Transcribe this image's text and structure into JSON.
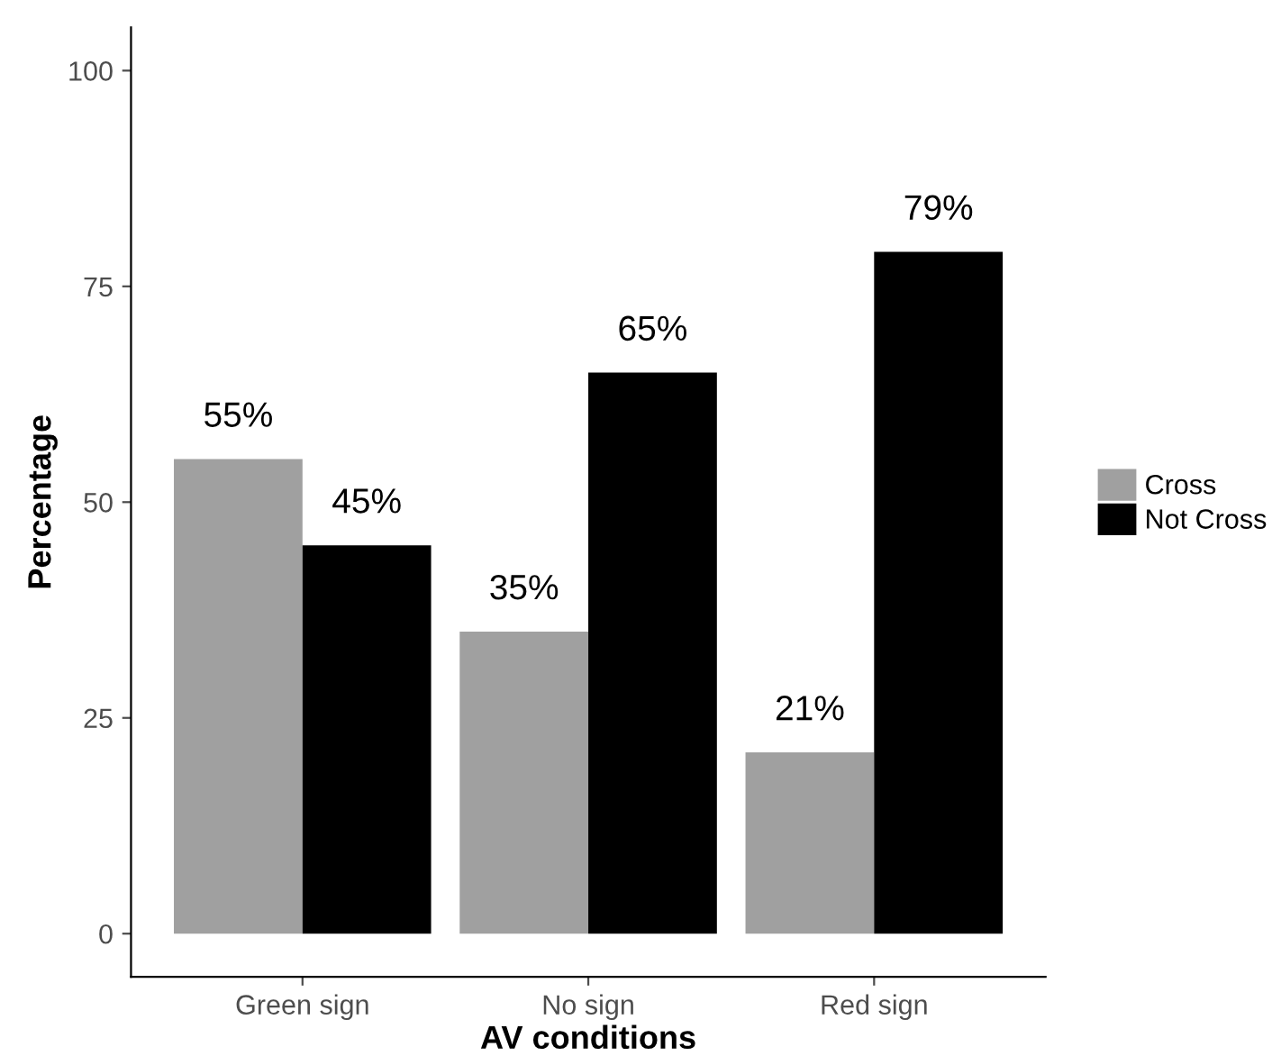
{
  "chart_data": {
    "type": "bar",
    "xlabel": "AV conditions",
    "ylabel": "Percentage",
    "categories": [
      "Green sign",
      "No sign",
      "Red sign"
    ],
    "series": [
      {
        "name": "Cross",
        "color": "#a0a0a0",
        "values": [
          55,
          35,
          21
        ],
        "value_labels": [
          "55%",
          "35%",
          "21%"
        ]
      },
      {
        "name": "Not Cross",
        "color": "#000000",
        "values": [
          45,
          65,
          79
        ],
        "value_labels": [
          "45%",
          "65%",
          "79%"
        ]
      }
    ],
    "ylim": [
      -5,
      105
    ],
    "yticks": [
      0,
      25,
      50,
      75,
      100
    ],
    "grid": false,
    "legend": "right"
  }
}
